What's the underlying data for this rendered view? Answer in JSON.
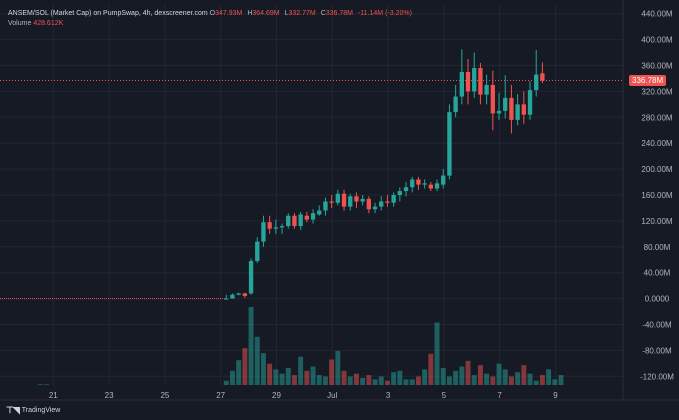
{
  "legend": {
    "title": "ANSEM/SOL (Market Cap) on PumpSwap, 4h, dexscreener.com",
    "open_label": "O",
    "open": "347.93M",
    "high_label": "H",
    "high": "364.69M",
    "low_label": "L",
    "low": "332.77M",
    "close_label": "C",
    "close": "336.78M",
    "change": "-11.14M (-3.20%)"
  },
  "volume": {
    "label": "Volume",
    "value": "428.612K"
  },
  "last_price_label": "336.78M",
  "branding": "TradingView",
  "colors": {
    "up": "#26a69a",
    "down": "#ef5350",
    "bg": "#161a25",
    "grid": "#232632",
    "text": "#b2b5be"
  },
  "chart_data": {
    "type": "candlestick",
    "y_ticks": [
      "440.00M",
      "400.00M",
      "360.00M",
      "320.00M",
      "280.00M",
      "240.00M",
      "200.00M",
      "160.00M",
      "120.00M",
      "80.00M",
      "40.00M",
      "0.0000",
      "-40.00M",
      "-80.00M",
      "-120.00M"
    ],
    "y_tick_values": [
      440,
      400,
      360,
      320,
      280,
      240,
      200,
      160,
      120,
      80,
      40,
      0,
      -40,
      -80,
      -120
    ],
    "ylim": [
      -135,
      455
    ],
    "x_ticks": [
      "21",
      "23",
      "25",
      "27",
      "29",
      "Jul",
      "3",
      "5",
      "7",
      "9"
    ],
    "x_tick_index": [
      6.1,
      15.1,
      24.1,
      33.1,
      42.1,
      51.1,
      60.1,
      69.1,
      78.1,
      87.1
    ],
    "x_range": [
      -2.5,
      98
    ],
    "last_price": 336.78,
    "candles_start_index": 34,
    "candles": [
      [
        0,
        0,
        -1,
        6
      ],
      [
        0,
        6,
        0,
        8
      ],
      [
        6,
        8,
        5,
        9
      ],
      [
        8,
        4,
        1,
        9
      ],
      [
        8,
        58,
        6,
        62
      ],
      [
        58,
        88,
        55,
        95
      ],
      [
        88,
        118,
        80,
        128
      ],
      [
        118,
        108,
        100,
        128
      ],
      [
        108,
        110,
        100,
        122
      ],
      [
        110,
        112,
        100,
        116
      ],
      [
        112,
        128,
        108,
        132
      ],
      [
        128,
        112,
        108,
        132
      ],
      [
        112,
        130,
        106,
        134
      ],
      [
        128,
        122,
        118,
        134
      ],
      [
        122,
        132,
        116,
        138
      ],
      [
        130,
        136,
        128,
        144
      ],
      [
        136,
        150,
        128,
        156
      ],
      [
        150,
        148,
        140,
        160
      ],
      [
        148,
        162,
        144,
        168
      ],
      [
        162,
        142,
        136,
        168
      ],
      [
        142,
        158,
        136,
        162
      ],
      [
        158,
        150,
        140,
        164
      ],
      [
        150,
        154,
        144,
        160
      ],
      [
        154,
        138,
        132,
        158
      ],
      [
        138,
        142,
        132,
        148
      ],
      [
        142,
        150,
        136,
        158
      ],
      [
        150,
        148,
        142,
        160
      ],
      [
        148,
        160,
        142,
        164
      ],
      [
        160,
        166,
        150,
        172
      ],
      [
        166,
        172,
        158,
        180
      ],
      [
        172,
        184,
        164,
        188
      ],
      [
        184,
        176,
        168,
        188
      ],
      [
        176,
        178,
        170,
        184
      ],
      [
        176,
        170,
        166,
        180
      ],
      [
        170,
        178,
        166,
        184
      ],
      [
        176,
        190,
        170,
        200
      ],
      [
        190,
        288,
        184,
        300
      ],
      [
        288,
        312,
        280,
        330
      ],
      [
        312,
        350,
        300,
        385
      ],
      [
        350,
        320,
        300,
        370
      ],
      [
        320,
        356,
        310,
        380
      ],
      [
        356,
        315,
        300,
        364
      ],
      [
        315,
        330,
        300,
        346
      ],
      [
        330,
        286,
        260,
        352
      ],
      [
        286,
        290,
        276,
        318
      ],
      [
        290,
        310,
        278,
        345
      ],
      [
        310,
        276,
        255,
        330
      ],
      [
        276,
        300,
        268,
        316
      ],
      [
        300,
        284,
        270,
        320
      ],
      [
        284,
        322,
        276,
        336
      ],
      [
        322,
        346,
        312,
        384
      ],
      [
        347.93,
        336.78,
        332.77,
        364.69
      ]
    ],
    "volumes": [
      0,
      0,
      0,
      0,
      1,
      1,
      0,
      0,
      0,
      0,
      0,
      0,
      0,
      0,
      0,
      0,
      0,
      0,
      0,
      0,
      0,
      0,
      0,
      0,
      0,
      0,
      0,
      0,
      0,
      0,
      0,
      0,
      0,
      0,
      6,
      20,
      35,
      52,
      110,
      68,
      45,
      30,
      22,
      16,
      24,
      14,
      40,
      20,
      26,
      14,
      12,
      36,
      48,
      20,
      12,
      16,
      10,
      14,
      8,
      12,
      6,
      18,
      20,
      8,
      8,
      12,
      22,
      44,
      88,
      24,
      12,
      20,
      26,
      34,
      14,
      28,
      16,
      12,
      30,
      22,
      12,
      18,
      28,
      16,
      6,
      14,
      22,
      8,
      14
    ],
    "vol_max": 110
  }
}
